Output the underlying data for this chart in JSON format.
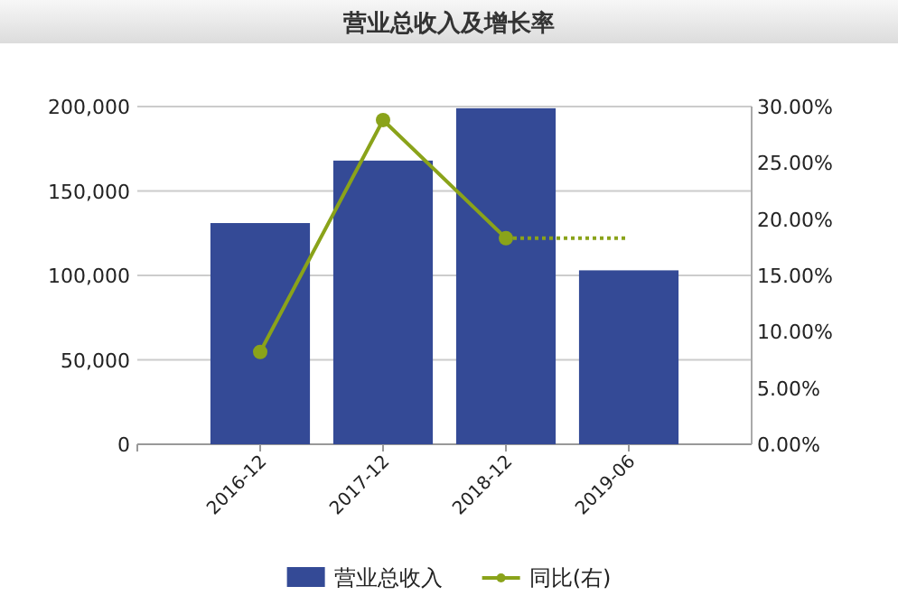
{
  "chart_data": {
    "type": "bar",
    "title": "营业总收入及增长率",
    "categories": [
      "2016-12",
      "2017-12",
      "2018-12",
      "2019-06"
    ],
    "series": [
      {
        "name": "营业总收入",
        "color": "#344a96",
        "values": [
          131000,
          168000,
          199000,
          103000
        ]
      },
      {
        "name": "同比(右)",
        "type": "line",
        "axis": "y2",
        "color": "#8aa31a",
        "marker": "circle",
        "line_style": "solid",
        "values": [
          8.2,
          28.8,
          18.3,
          null
        ]
      },
      {
        "type": "line",
        "axis": "y2",
        "color": "#8aa31a",
        "marker": "none",
        "line_style": "dotted",
        "values": [
          null,
          null,
          18.3,
          18.3
        ]
      }
    ],
    "ylim": [
      0,
      200000
    ],
    "yticks": [
      {
        "value": 0,
        "label": "0"
      },
      {
        "value": 50000,
        "label": "50,000"
      },
      {
        "value": 100000,
        "label": "100,000"
      },
      {
        "value": 150000,
        "label": "150,000"
      },
      {
        "value": 200000,
        "label": "200,000"
      }
    ],
    "y2lim": [
      0,
      30
    ],
    "y2ticks": [
      {
        "value": 0,
        "label": "0.00%"
      },
      {
        "value": 5,
        "label": "5.00%"
      },
      {
        "value": 10,
        "label": "10.00%"
      },
      {
        "value": 15,
        "label": "15.00%"
      },
      {
        "value": 20,
        "label": "20.00%"
      },
      {
        "value": 25,
        "label": "25.00%"
      },
      {
        "value": 30,
        "label": "30.00%"
      }
    ],
    "grid": "y",
    "legend": "bottom"
  }
}
